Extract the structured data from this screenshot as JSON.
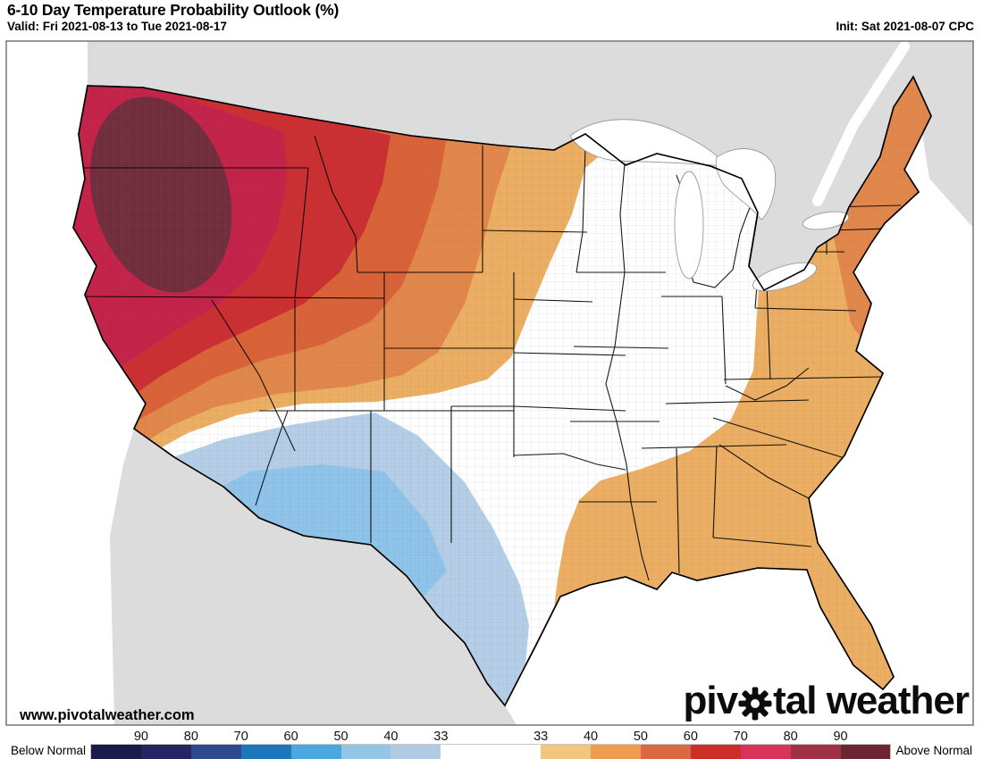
{
  "header": {
    "title": "6-10 Day Temperature Probability Outlook (%)",
    "valid": "Valid: Fri 2021-08-13 to Tue 2021-08-17",
    "init": "Init: Sat 2021-08-07 CPC"
  },
  "map": {
    "watermark": "www.pivotalweather.com",
    "logo": {
      "part1": "piv",
      "part2": "tal weather"
    },
    "region_colors": {
      "water": "#FFFFFF",
      "foreign_land": "#DCDCDC",
      "normal": "#FFFFFF",
      "above_40": "#EBAE62",
      "above_50": "#E2874B",
      "above_60": "#D96238",
      "above_70": "#CB2F31",
      "above_80": "#C32349",
      "above_90": "#722E3C",
      "below_33": "#B5CEE8",
      "below_40": "#8FC3E9"
    }
  },
  "legend": {
    "left_label": "Below Normal",
    "right_label": "Above Normal",
    "tick_labels": [
      "90",
      "80",
      "70",
      "60",
      "50",
      "40",
      "33",
      "",
      "33",
      "40",
      "50",
      "60",
      "70",
      "80",
      "90"
    ],
    "segment_colors": [
      "#1B1A4A",
      "#252464",
      "#2E4A8E",
      "#1E77BC",
      "#4AA7E0",
      "#93C5E6",
      "#B2CBE5",
      "#FFFFFF",
      "#FFFFFF",
      "#F2C77D",
      "#EE9C50",
      "#DB6743",
      "#CB3028",
      "#D83459",
      "#A03145",
      "#6B2533"
    ]
  }
}
